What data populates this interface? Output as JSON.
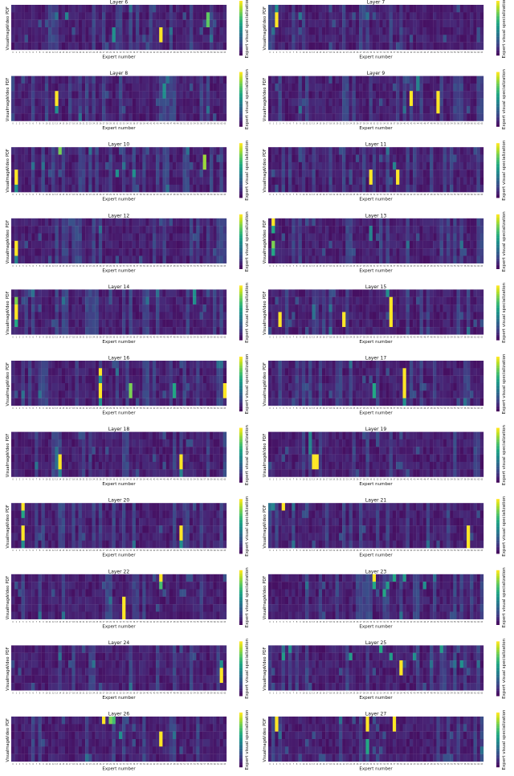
{
  "figure": {
    "xlabel": "Expert number",
    "ylabel_rows": [
      "Visual",
      "Image",
      "Video",
      "PDF"
    ],
    "colorbar_label": "Expert visual specialization",
    "colormap": "viridis",
    "num_experts": 64,
    "value_range": [
      0,
      1
    ]
  },
  "chart_data": [
    {
      "type": "heatmap",
      "title": "Layer 6",
      "xlabel": "Expert number",
      "rows": [
        "Visual",
        "Image",
        "Video",
        "PDF"
      ],
      "peaks": [
        {
          "expert": 58,
          "row": 1,
          "value": 0.75
        },
        {
          "expert": 58,
          "row": 2,
          "value": 0.75
        },
        {
          "expert": 44,
          "row": 3,
          "value": 1.0
        },
        {
          "expert": 44,
          "row": 4,
          "value": 1.0
        },
        {
          "expert": 30,
          "row": 3,
          "value": 0.5
        },
        {
          "expert": 30,
          "row": 4,
          "value": 0.5
        },
        {
          "expert": 16,
          "row": 1,
          "value": 0.45
        }
      ]
    },
    {
      "type": "heatmap",
      "title": "Layer 7",
      "xlabel": "Expert number",
      "rows": [
        "Visual",
        "Image",
        "Video",
        "PDF"
      ],
      "peaks": [
        {
          "expert": 2,
          "row": 1,
          "value": 1.0
        },
        {
          "expert": 2,
          "row": 2,
          "value": 1.0
        },
        {
          "expert": 2,
          "row": 0,
          "value": 0.5
        },
        {
          "expert": 9,
          "row": 1,
          "value": 0.4
        }
      ]
    },
    {
      "type": "heatmap",
      "title": "Layer 8",
      "xlabel": "Expert number",
      "rows": [
        "Visual",
        "Image",
        "Video",
        "PDF"
      ],
      "peaks": [
        {
          "expert": 13,
          "row": 2,
          "value": 1.0
        },
        {
          "expert": 13,
          "row": 3,
          "value": 1.0
        },
        {
          "expert": 13,
          "row": 4,
          "value": 0.5
        },
        {
          "expert": 45,
          "row": 1,
          "value": 0.5
        },
        {
          "expert": 45,
          "row": 2,
          "value": 0.5
        }
      ]
    },
    {
      "type": "heatmap",
      "title": "Layer 9",
      "xlabel": "Expert number",
      "rows": [
        "Visual",
        "Image",
        "Video",
        "PDF"
      ],
      "peaks": [
        {
          "expert": 42,
          "row": 2,
          "value": 1.0
        },
        {
          "expert": 42,
          "row": 3,
          "value": 1.0
        },
        {
          "expert": 50,
          "row": 2,
          "value": 1.0
        },
        {
          "expert": 50,
          "row": 3,
          "value": 1.0
        },
        {
          "expert": 50,
          "row": 4,
          "value": 1.0
        },
        {
          "expert": 44,
          "row": 0,
          "value": 0.45
        },
        {
          "expert": 44,
          "row": 1,
          "value": 0.45
        }
      ]
    },
    {
      "type": "heatmap",
      "title": "Layer 10",
      "xlabel": "Expert number",
      "rows": [
        "Visual",
        "Image",
        "Video",
        "PDF"
      ],
      "peaks": [
        {
          "expert": 1,
          "row": 3,
          "value": 1.0
        },
        {
          "expert": 1,
          "row": 4,
          "value": 1.0
        },
        {
          "expert": 1,
          "row": 5,
          "value": 0.5
        },
        {
          "expert": 57,
          "row": 1,
          "value": 0.85
        },
        {
          "expert": 57,
          "row": 2,
          "value": 0.85
        },
        {
          "expert": 14,
          "row": 0,
          "value": 0.8
        },
        {
          "expert": 31,
          "row": 3,
          "value": 0.5
        },
        {
          "expert": 36,
          "row": 3,
          "value": 0.5
        }
      ]
    },
    {
      "type": "heatmap",
      "title": "Layer 11",
      "xlabel": "Expert number",
      "rows": [
        "Visual",
        "Image",
        "Video",
        "PDF"
      ],
      "peaks": [
        {
          "expert": 30,
          "row": 3,
          "value": 1.0
        },
        {
          "expert": 30,
          "row": 4,
          "value": 1.0
        },
        {
          "expert": 38,
          "row": 3,
          "value": 1.0
        },
        {
          "expert": 38,
          "row": 4,
          "value": 1.0
        },
        {
          "expert": 37,
          "row": 2,
          "value": 0.45
        }
      ]
    },
    {
      "type": "heatmap",
      "title": "Layer 12",
      "xlabel": "Expert number",
      "rows": [
        "Visual",
        "Image",
        "Video",
        "PDF"
      ],
      "peaks": [
        {
          "expert": 1,
          "row": 3,
          "value": 1.0
        },
        {
          "expert": 1,
          "row": 4,
          "value": 1.0
        },
        {
          "expert": 1,
          "row": 5,
          "value": 0.45
        }
      ]
    },
    {
      "type": "heatmap",
      "title": "Layer 13",
      "xlabel": "Expert number",
      "rows": [
        "Visual",
        "Image",
        "Video",
        "PDF"
      ],
      "peaks": [
        {
          "expert": 1,
          "row": 0,
          "value": 1.0
        },
        {
          "expert": 1,
          "row": 1,
          "value": 0.6
        },
        {
          "expert": 1,
          "row": 3,
          "value": 0.8
        },
        {
          "expert": 1,
          "row": 4,
          "value": 0.6
        },
        {
          "expert": 30,
          "row": 1,
          "value": 0.45
        },
        {
          "expert": 30,
          "row": 2,
          "value": 0.45
        }
      ]
    },
    {
      "type": "heatmap",
      "title": "Layer 14",
      "xlabel": "Expert number",
      "rows": [
        "Visual",
        "Image",
        "Video",
        "PDF"
      ],
      "peaks": [
        {
          "expert": 1,
          "row": 1,
          "value": 0.8
        },
        {
          "expert": 1,
          "row": 2,
          "value": 1.0
        },
        {
          "expert": 1,
          "row": 3,
          "value": 1.0
        },
        {
          "expert": 1,
          "row": 4,
          "value": 0.6
        },
        {
          "expert": 54,
          "row": 0,
          "value": 0.5
        },
        {
          "expert": 54,
          "row": 1,
          "value": 0.5
        }
      ]
    },
    {
      "type": "heatmap",
      "title": "Layer 15",
      "xlabel": "Expert number",
      "rows": [
        "Visual",
        "Image",
        "Video",
        "PDF"
      ],
      "peaks": [
        {
          "expert": 35,
          "row": 0,
          "value": 0.5
        },
        {
          "expert": 36,
          "row": 1,
          "value": 1.0
        },
        {
          "expert": 36,
          "row": 2,
          "value": 1.0
        },
        {
          "expert": 36,
          "row": 3,
          "value": 1.0
        },
        {
          "expert": 36,
          "row": 4,
          "value": 1.0
        },
        {
          "expert": 3,
          "row": 3,
          "value": 1.0
        },
        {
          "expert": 3,
          "row": 4,
          "value": 1.0
        },
        {
          "expert": 22,
          "row": 3,
          "value": 1.0
        },
        {
          "expert": 22,
          "row": 4,
          "value": 1.0
        }
      ]
    },
    {
      "type": "heatmap",
      "title": "Layer 16",
      "xlabel": "Expert number",
      "rows": [
        "Visual",
        "Image",
        "Video",
        "PDF"
      ],
      "peaks": [
        {
          "expert": 26,
          "row": 1,
          "value": 1.0
        },
        {
          "expert": 26,
          "row": 2,
          "value": 0.5
        },
        {
          "expert": 26,
          "row": 3,
          "value": 1.0
        },
        {
          "expert": 26,
          "row": 4,
          "value": 1.0
        },
        {
          "expert": 26,
          "row": 5,
          "value": 0.5
        },
        {
          "expert": 35,
          "row": 3,
          "value": 0.8
        },
        {
          "expert": 35,
          "row": 4,
          "value": 0.8
        },
        {
          "expert": 48,
          "row": 3,
          "value": 0.6
        },
        {
          "expert": 48,
          "row": 4,
          "value": 0.6
        },
        {
          "expert": 63,
          "row": 3,
          "value": 1.0
        },
        {
          "expert": 63,
          "row": 4,
          "value": 1.0
        }
      ]
    },
    {
      "type": "heatmap",
      "title": "Layer 17",
      "xlabel": "Expert number",
      "rows": [
        "Visual",
        "Image",
        "Video",
        "PDF"
      ],
      "peaks": [
        {
          "expert": 40,
          "row": 1,
          "value": 1.0
        },
        {
          "expert": 40,
          "row": 2,
          "value": 1.0
        },
        {
          "expert": 40,
          "row": 3,
          "value": 1.0
        },
        {
          "expert": 40,
          "row": 4,
          "value": 1.0
        },
        {
          "expert": 40,
          "row": 5,
          "value": 0.5
        },
        {
          "expert": 31,
          "row": 3,
          "value": 0.6
        },
        {
          "expert": 31,
          "row": 4,
          "value": 0.6
        }
      ]
    },
    {
      "type": "heatmap",
      "title": "Layer 18",
      "xlabel": "Expert number",
      "rows": [
        "Visual",
        "Image",
        "Video",
        "PDF"
      ],
      "peaks": [
        {
          "expert": 14,
          "row": 3,
          "value": 1.0
        },
        {
          "expert": 14,
          "row": 4,
          "value": 1.0
        },
        {
          "expert": 14,
          "row": 5,
          "value": 0.45
        },
        {
          "expert": 50,
          "row": 3,
          "value": 1.0
        },
        {
          "expert": 50,
          "row": 4,
          "value": 1.0
        },
        {
          "expert": 50,
          "row": 5,
          "value": 0.45
        }
      ]
    },
    {
      "type": "heatmap",
      "title": "Layer 19",
      "xlabel": "Expert number",
      "rows": [
        "Visual",
        "Image",
        "Video",
        "PDF"
      ],
      "peaks": [
        {
          "expert": 13,
          "row": 3,
          "value": 1.0
        },
        {
          "expert": 13,
          "row": 4,
          "value": 1.0
        },
        {
          "expert": 14,
          "row": 3,
          "value": 1.0
        },
        {
          "expert": 14,
          "row": 4,
          "value": 1.0
        },
        {
          "expert": 12,
          "row": 0,
          "value": 0.45
        },
        {
          "expert": 12,
          "row": 1,
          "value": 0.45
        },
        {
          "expert": 12,
          "row": 2,
          "value": 0.45
        }
      ]
    },
    {
      "type": "heatmap",
      "title": "Layer 20",
      "xlabel": "Expert number",
      "rows": [
        "Visual",
        "Image",
        "Video",
        "PDF"
      ],
      "peaks": [
        {
          "expert": 3,
          "row": 0,
          "value": 1.0
        },
        {
          "expert": 3,
          "row": 1,
          "value": 0.6
        },
        {
          "expert": 3,
          "row": 3,
          "value": 1.0
        },
        {
          "expert": 3,
          "row": 4,
          "value": 1.0
        },
        {
          "expert": 3,
          "row": 5,
          "value": 0.5
        },
        {
          "expert": 50,
          "row": 3,
          "value": 1.0
        },
        {
          "expert": 50,
          "row": 4,
          "value": 1.0
        },
        {
          "expert": 50,
          "row": 5,
          "value": 0.5
        }
      ]
    },
    {
      "type": "heatmap",
      "title": "Layer 21",
      "xlabel": "Expert number",
      "rows": [
        "Visual",
        "Image",
        "Video",
        "PDF"
      ],
      "peaks": [
        {
          "expert": 4,
          "row": 0,
          "value": 1.0
        },
        {
          "expert": 1,
          "row": 0,
          "value": 0.45
        },
        {
          "expert": 59,
          "row": 3,
          "value": 1.0
        },
        {
          "expert": 59,
          "row": 4,
          "value": 1.0
        },
        {
          "expert": 59,
          "row": 5,
          "value": 1.0
        }
      ]
    },
    {
      "type": "heatmap",
      "title": "Layer 22",
      "xlabel": "Expert number",
      "rows": [
        "Visual",
        "Image",
        "Video",
        "PDF"
      ],
      "peaks": [
        {
          "expert": 44,
          "row": 0,
          "value": 1.0
        },
        {
          "expert": 44,
          "row": 1,
          "value": 0.7
        },
        {
          "expert": 33,
          "row": 3,
          "value": 1.0
        },
        {
          "expert": 33,
          "row": 4,
          "value": 1.0
        },
        {
          "expert": 33,
          "row": 5,
          "value": 1.0
        }
      ]
    },
    {
      "type": "heatmap",
      "title": "Layer 23",
      "xlabel": "Expert number",
      "rows": [
        "Visual",
        "Image",
        "Video",
        "PDF"
      ],
      "peaks": [
        {
          "expert": 31,
          "row": 0,
          "value": 1.0
        },
        {
          "expert": 31,
          "row": 1,
          "value": 0.6
        },
        {
          "expert": 35,
          "row": 1,
          "value": 0.55
        },
        {
          "expert": 37,
          "row": 0,
          "value": 0.6
        },
        {
          "expert": 40,
          "row": 0,
          "value": 0.55
        },
        {
          "expert": 34,
          "row": 2,
          "value": 0.6
        },
        {
          "expert": 46,
          "row": 1,
          "value": 0.5
        }
      ]
    },
    {
      "type": "heatmap",
      "title": "Layer 24",
      "xlabel": "Expert number",
      "rows": [
        "Visual",
        "Image",
        "Video",
        "PDF"
      ],
      "peaks": [
        {
          "expert": 62,
          "row": 3,
          "value": 1.0
        },
        {
          "expert": 62,
          "row": 4,
          "value": 1.0
        },
        {
          "expert": 62,
          "row": 2,
          "value": 0.5
        }
      ]
    },
    {
      "type": "heatmap",
      "title": "Layer 25",
      "xlabel": "Expert number",
      "rows": [
        "Visual",
        "Image",
        "Video",
        "PDF"
      ],
      "peaks": [
        {
          "expert": 39,
          "row": 2,
          "value": 1.0
        },
        {
          "expert": 39,
          "row": 3,
          "value": 1.0
        },
        {
          "expert": 4,
          "row": 1,
          "value": 0.55
        },
        {
          "expert": 6,
          "row": 0,
          "value": 0.5
        },
        {
          "expert": 24,
          "row": 1,
          "value": 0.55
        },
        {
          "expert": 33,
          "row": 0,
          "value": 0.6
        },
        {
          "expert": 36,
          "row": 1,
          "value": 0.55
        },
        {
          "expert": 43,
          "row": 1,
          "value": 0.5
        },
        {
          "expert": 51,
          "row": 0,
          "value": 0.55
        },
        {
          "expert": 57,
          "row": 2,
          "value": 0.5
        }
      ]
    },
    {
      "type": "heatmap",
      "title": "Layer 26",
      "xlabel": "Expert number",
      "rows": [
        "Visual",
        "Image",
        "Video",
        "PDF"
      ],
      "peaks": [
        {
          "expert": 27,
          "row": 0,
          "value": 1.0
        },
        {
          "expert": 29,
          "row": 0,
          "value": 0.8
        },
        {
          "expert": 30,
          "row": 0,
          "value": 0.7
        },
        {
          "expert": 44,
          "row": 2,
          "value": 1.0
        },
        {
          "expert": 44,
          "row": 3,
          "value": 1.0
        },
        {
          "expert": 32,
          "row": 2,
          "value": 0.5
        }
      ]
    },
    {
      "type": "heatmap",
      "title": "Layer 27",
      "xlabel": "Expert number",
      "rows": [
        "Visual",
        "Image",
        "Video",
        "PDF"
      ],
      "peaks": [
        {
          "expert": 2,
          "row": 0,
          "value": 1.0
        },
        {
          "expert": 2,
          "row": 1,
          "value": 1.0
        },
        {
          "expert": 29,
          "row": 0,
          "value": 1.0
        },
        {
          "expert": 29,
          "row": 1,
          "value": 1.0
        },
        {
          "expert": 37,
          "row": 0,
          "value": 1.0
        },
        {
          "expert": 37,
          "row": 1,
          "value": 1.0
        },
        {
          "expert": 29,
          "row": 3,
          "value": 0.6
        },
        {
          "expert": 29,
          "row": 4,
          "value": 0.6
        }
      ]
    }
  ]
}
